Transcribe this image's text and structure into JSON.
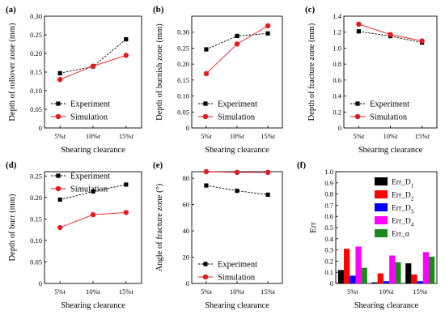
{
  "chart_data": [
    {
      "panel": "(a)",
      "type": "line",
      "categories": [
        "5%t",
        "10%t",
        "15%t"
      ],
      "xlabel": "Shearing clearance",
      "ylabel": "Depth of rollover zone (mm)",
      "ylim": [
        0,
        0.3
      ],
      "yticks": [
        "0",
        "0.05",
        "0.10",
        "0.15",
        "0.20",
        "0.25",
        "0.30"
      ],
      "legend_position": "bottom-right",
      "series": [
        {
          "name": "Experiment",
          "color": "#000000",
          "marker": "square",
          "values": [
            0.147,
            0.165,
            0.238
          ]
        },
        {
          "name": "Simulation",
          "color": "#e8191c",
          "marker": "circle",
          "values": [
            0.13,
            0.166,
            0.195
          ]
        }
      ]
    },
    {
      "panel": "(b)",
      "type": "line",
      "categories": [
        "5%t",
        "10%t",
        "15%t"
      ],
      "xlabel": "Shearing clearance",
      "ylabel": "Depth of burnish zone (mm)",
      "ylim": [
        0,
        0.35
      ],
      "yticks": [
        "0",
        "0.05",
        "0.10",
        "0.15",
        "0.20",
        "0.25",
        "0.30"
      ],
      "legend_position": "bottom-right",
      "series": [
        {
          "name": "Experiment",
          "color": "#000000",
          "marker": "square",
          "values": [
            0.246,
            0.288,
            0.296
          ]
        },
        {
          "name": "Simulation",
          "color": "#e8191c",
          "marker": "circle",
          "values": [
            0.17,
            0.263,
            0.32
          ]
        }
      ]
    },
    {
      "panel": "(c)",
      "type": "line",
      "categories": [
        "5%t",
        "10%t",
        "15%t"
      ],
      "xlabel": "Shearing clearance",
      "ylabel": "Depth of fracture zone (mm)",
      "ylim": [
        0,
        1.4
      ],
      "yticks": [
        "0",
        "0.2",
        "0.4",
        "0.6",
        "0.8",
        "1.0",
        "1.2",
        "1.4"
      ],
      "legend_position": "bottom-right",
      "series": [
        {
          "name": "Experiment",
          "color": "#000000",
          "marker": "square",
          "values": [
            1.21,
            1.15,
            1.07
          ]
        },
        {
          "name": "Simulation",
          "color": "#e8191c",
          "marker": "circle",
          "values": [
            1.3,
            1.17,
            1.09
          ]
        }
      ]
    },
    {
      "panel": "(d)",
      "type": "line",
      "categories": [
        "5%t",
        "10%t",
        "15%t"
      ],
      "xlabel": "Shearing clearance",
      "ylabel": "Depth of burr (mm)",
      "ylim": [
        0,
        0.26
      ],
      "yticks": [
        "0",
        "0.05",
        "0.10",
        "0.15",
        "0.20",
        "0.25"
      ],
      "legend_position": "top-right",
      "series": [
        {
          "name": "Experiment",
          "color": "#000000",
          "marker": "square",
          "values": [
            0.195,
            0.214,
            0.23
          ]
        },
        {
          "name": "Simulation",
          "color": "#e8191c",
          "marker": "circle",
          "values": [
            0.13,
            0.16,
            0.165
          ]
        }
      ]
    },
    {
      "panel": "(e)",
      "type": "line",
      "categories": [
        "5%t",
        "10%t",
        "15%t"
      ],
      "xlabel": "Shearing clearance",
      "ylabel": "Angle of fracture zone (°)",
      "ylim": [
        0,
        85
      ],
      "yticks": [
        "0",
        "20",
        "40",
        "60",
        "80"
      ],
      "legend_position": "bottom-right",
      "series": [
        {
          "name": "Experiment",
          "color": "#000000",
          "marker": "square",
          "values": [
            74.5,
            70.5,
            67.5
          ]
        },
        {
          "name": "Simulation",
          "color": "#e8191c",
          "marker": "circle",
          "values": [
            85.0,
            84.5,
            84.5
          ]
        }
      ]
    },
    {
      "panel": "(f)",
      "type": "bar",
      "categories": [
        "5%t",
        "10%t",
        "15%t"
      ],
      "xlabel": "Shearing clearance",
      "ylabel": "Err",
      "ylim": [
        0,
        1.0
      ],
      "yticks": [
        "0",
        "0.1",
        "0.2",
        "0.3",
        "0.4",
        "0.5",
        "0.6",
        "0.7",
        "0.8",
        "0.9",
        "1.0"
      ],
      "legend_position": "top-right",
      "series": [
        {
          "name": "Err_D",
          "sub": "1",
          "color": "#000000",
          "values": [
            0.12,
            0.01,
            0.18
          ]
        },
        {
          "name": "Err_D",
          "sub": "2",
          "color": "#ff0000",
          "values": [
            0.31,
            0.09,
            0.08
          ]
        },
        {
          "name": "Err_D",
          "sub": "3",
          "color": "#0000ff",
          "values": [
            0.07,
            0.02,
            0.02
          ]
        },
        {
          "name": "Err_D",
          "sub": "4",
          "color": "#ff00ff",
          "values": [
            0.33,
            0.25,
            0.28
          ]
        },
        {
          "name": "Err_α",
          "sub": "",
          "color": "#1a8a1a",
          "values": [
            0.14,
            0.19,
            0.24
          ]
        }
      ]
    }
  ]
}
